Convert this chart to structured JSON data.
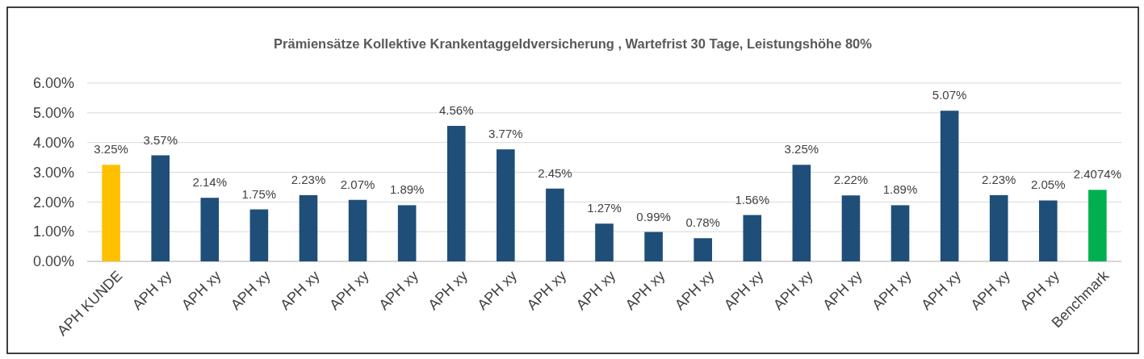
{
  "chart_data": {
    "type": "bar",
    "title": "Prämiensätze Kollektive Krankentaggeldversicherung , Wartefrist 30 Tage, Leistungshöhe 80%",
    "categories": [
      "APH KUNDE",
      "APH xy",
      "APH xy",
      "APH xy",
      "APH xy",
      "APH xy",
      "APH xy",
      "APH xy",
      "APH xy",
      "APH xy",
      "APH xy",
      "APH xy",
      "APH xy",
      "APH xy",
      "APH xy",
      "APH xy",
      "APH xy",
      "APH xy",
      "APH xy",
      "APH xy",
      "Benchmark"
    ],
    "values": [
      3.25,
      3.57,
      2.14,
      1.75,
      2.23,
      2.07,
      1.89,
      4.56,
      3.77,
      2.45,
      1.27,
      0.99,
      0.78,
      1.56,
      3.25,
      2.22,
      1.89,
      5.07,
      2.23,
      2.05,
      2.4074
    ],
    "value_labels": [
      "3.25%",
      "3.57%",
      "2.14%",
      "1.75%",
      "2.23%",
      "2.07%",
      "1.89%",
      "4.56%",
      "3.77%",
      "2.45%",
      "1.27%",
      "0.99%",
      "0.78%",
      "1.56%",
      "3.25%",
      "2.22%",
      "1.89%",
      "5.07%",
      "2.23%",
      "2.05%",
      "2.4074%"
    ],
    "colors": [
      "#ffc000",
      "#1f4e79",
      "#1f4e79",
      "#1f4e79",
      "#1f4e79",
      "#1f4e79",
      "#1f4e79",
      "#1f4e79",
      "#1f4e79",
      "#1f4e79",
      "#1f4e79",
      "#1f4e79",
      "#1f4e79",
      "#1f4e79",
      "#1f4e79",
      "#1f4e79",
      "#1f4e79",
      "#1f4e79",
      "#1f4e79",
      "#1f4e79",
      "#00b050"
    ],
    "ylim": [
      0,
      6
    ],
    "yticks": [
      {
        "value": 0,
        "label": "0.00%"
      },
      {
        "value": 1,
        "label": "1.00%"
      },
      {
        "value": 2,
        "label": "2.00%"
      },
      {
        "value": 3,
        "label": "3.00%"
      },
      {
        "value": 4,
        "label": "4.00%"
      },
      {
        "value": 5,
        "label": "5.00%"
      },
      {
        "value": 6,
        "label": "6.00%"
      }
    ],
    "grid": "y"
  }
}
